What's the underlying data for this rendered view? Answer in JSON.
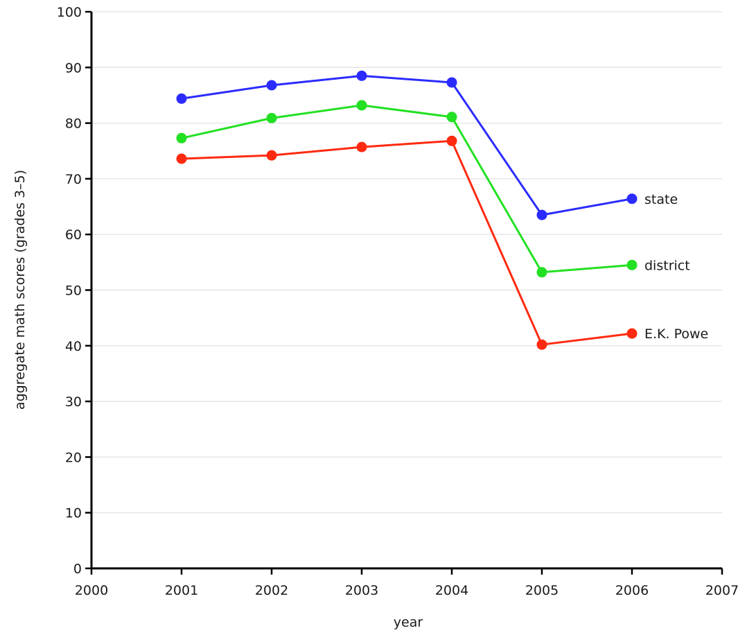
{
  "chart_data": {
    "type": "line",
    "title": "",
    "xlabel": "year",
    "ylabel": "aggregate math scores (grades 3–5)",
    "xlim": [
      2000,
      2007
    ],
    "ylim": [
      0,
      100
    ],
    "x_ticks": [
      "2000",
      "2001",
      "2002",
      "2003",
      "2004",
      "2005",
      "2006",
      "2007"
    ],
    "y_ticks": [
      "0",
      "10",
      "20",
      "30",
      "40",
      "50",
      "60",
      "70",
      "80",
      "90",
      "100"
    ],
    "grid": true,
    "legend": "labels at end of lines",
    "x": [
      2001,
      2002,
      2003,
      2004,
      2005,
      2006
    ],
    "series": [
      {
        "name": "state",
        "color": "#2b2bff",
        "values": [
          84.4,
          86.8,
          88.5,
          87.3,
          63.5,
          66.4
        ]
      },
      {
        "name": "district",
        "color": "#22e022",
        "values": [
          77.3,
          80.9,
          83.2,
          81.1,
          53.2,
          54.5
        ]
      },
      {
        "name": "E.K. Powe",
        "color": "#ff2a10",
        "values": [
          73.6,
          74.2,
          75.7,
          76.8,
          40.2,
          42.2
        ]
      }
    ]
  }
}
